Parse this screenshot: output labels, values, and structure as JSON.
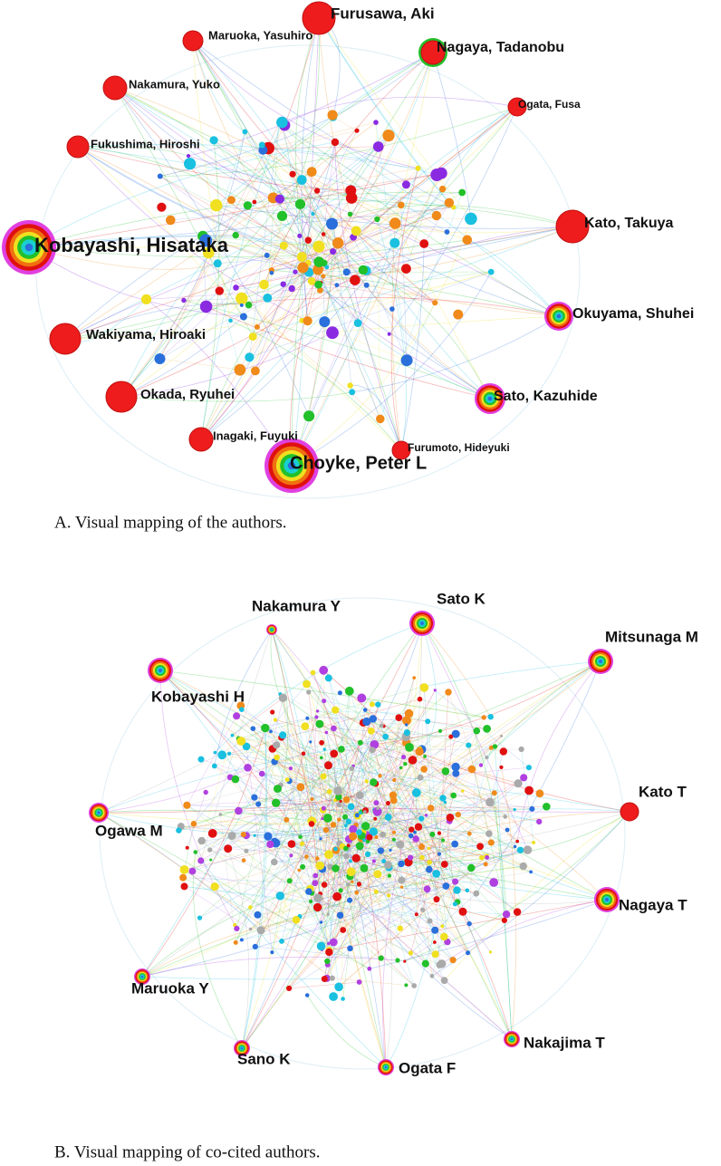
{
  "panels": [
    {
      "caption": "A. Visual mapping of the authors.",
      "nodes": [
        {
          "label": "Furusawa, Aki"
        },
        {
          "label": "Maruoka, Yasuhiro"
        },
        {
          "label": "Nagaya, Tadanobu"
        },
        {
          "label": "Nakamura, Yuko"
        },
        {
          "label": "Ogata, Fusa"
        },
        {
          "label": "Fukushima, Hiroshi"
        },
        {
          "label": "Kato, Takuya"
        },
        {
          "label": "Kobayashi, Hisataka"
        },
        {
          "label": "Okuyama, Shuhei"
        },
        {
          "label": "Wakiyama, Hiroaki"
        },
        {
          "label": "Okada, Ryuhei"
        },
        {
          "label": "Sato, Kazuhide"
        },
        {
          "label": "Inagaki, Fuyuki"
        },
        {
          "label": "Furumoto, Hideyuki"
        },
        {
          "label": "Choyke, Peter L"
        }
      ]
    },
    {
      "caption": "B. Visual mapping of co-cited authors.",
      "nodes": [
        {
          "label": "Nakamura Y"
        },
        {
          "label": "Sato K"
        },
        {
          "label": "Mitsunaga M"
        },
        {
          "label": "Kobayashi H"
        },
        {
          "label": "Kato T"
        },
        {
          "label": "Ogawa M"
        },
        {
          "label": "Nagaya T"
        },
        {
          "label": "Maruoka Y"
        },
        {
          "label": "Sano K"
        },
        {
          "label": "Nakajima T"
        },
        {
          "label": "Ogata F"
        }
      ]
    }
  ]
}
